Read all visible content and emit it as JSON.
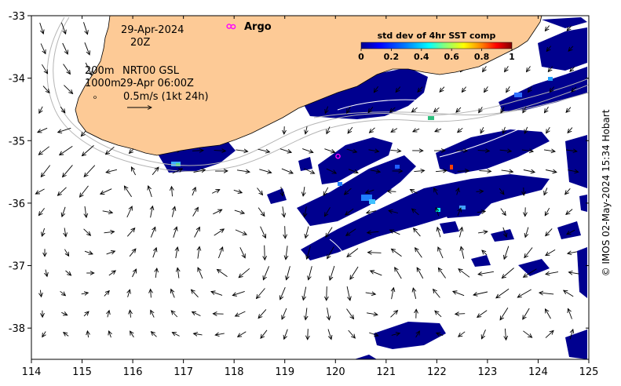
{
  "map": {
    "x_ticks": [
      "114",
      "115",
      "116",
      "117",
      "118",
      "119",
      "120",
      "121",
      "122",
      "123",
      "124",
      "125"
    ],
    "y_ticks": [
      "-33",
      "-34",
      "-35",
      "-36",
      "-37",
      "-38"
    ],
    "x_range": [
      114,
      125
    ],
    "y_range": [
      -38.5,
      -33
    ],
    "date_line1": "29-Apr-2024",
    "date_line2": "20Z",
    "depth_200": "200m",
    "depth_1000": "1000m",
    "product": "NRT00 GSL",
    "product_time": "29-Apr 06:00Z",
    "arrow_scale": "0.5m/s (1kt 24h)",
    "argo_label": "Argo",
    "colorbar_title": "std dev of 4hr SST comp",
    "colorbar_ticks": [
      "0",
      "0.2",
      "0.4",
      "0.6",
      "0.8",
      "1"
    ],
    "colorbar_range": [
      0,
      1
    ],
    "credit": "© IMOS 02-May-2024 15:34 Hobart"
  },
  "argo_floats": [
    {
      "lon": 117.9,
      "lat": -33.17
    },
    {
      "lon": 120.05,
      "lat": -35.25
    }
  ],
  "colors": {
    "land": "#fdca96",
    "ocean": "#ffffff",
    "sst_low": "#00008f",
    "argo": "#ff00ff",
    "colormap": [
      "#00008f",
      "#0000ff",
      "#0080ff",
      "#00ffff",
      "#80ff80",
      "#ffff00",
      "#ff8000",
      "#ff0000",
      "#800000"
    ]
  }
}
